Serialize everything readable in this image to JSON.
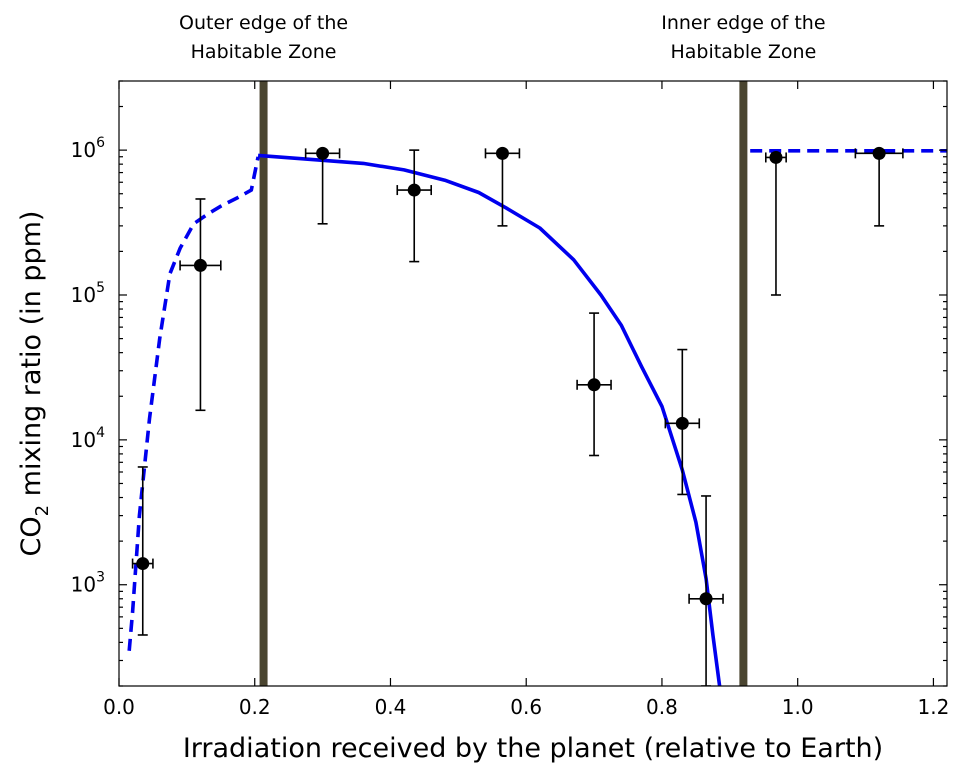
{
  "chart_data": {
    "type": "scatter",
    "title": "",
    "xlabel": "Irradiation received by the planet (relative to Earth)",
    "ylabel_main": "CO",
    "ylabel_sub": "2",
    "ylabel_rest": " mixing ratio (in ppm)",
    "xlim": [
      0.0,
      1.22
    ],
    "ylim": [
      200,
      3000000
    ],
    "yscale": "log",
    "grid": false,
    "x_ticks": [
      {
        "value": 0.0,
        "label": "0.0"
      },
      {
        "value": 0.2,
        "label": "0.2"
      },
      {
        "value": 0.4,
        "label": "0.4"
      },
      {
        "value": 0.6,
        "label": "0.6"
      },
      {
        "value": 0.8,
        "label": "0.8"
      },
      {
        "value": 1.0,
        "label": "1.0"
      },
      {
        "value": 1.2,
        "label": "1.2"
      }
    ],
    "y_ticks": [
      {
        "value": 1000,
        "base": "10",
        "exp": "3"
      },
      {
        "value": 10000,
        "base": "10",
        "exp": "4"
      },
      {
        "value": 100000,
        "base": "10",
        "exp": "5"
      },
      {
        "value": 1000000,
        "base": "10",
        "exp": "6"
      }
    ],
    "points": [
      {
        "x": 0.035,
        "y": 1400,
        "xerr": 0.015,
        "ylow": 450,
        "yhigh": 6500
      },
      {
        "x": 0.12,
        "y": 160000,
        "xerr": 0.03,
        "ylow": 16000,
        "yhigh": 460000
      },
      {
        "x": 0.3,
        "y": 950000,
        "xerr": 0.025,
        "ylow": 310000,
        "yhigh": 950000
      },
      {
        "x": 0.435,
        "y": 530000,
        "xerr": 0.025,
        "ylow": 170000,
        "yhigh": 1000000
      },
      {
        "x": 0.565,
        "y": 950000,
        "xerr": 0.025,
        "ylow": 300000,
        "yhigh": 950000
      },
      {
        "x": 0.7,
        "y": 24000,
        "xerr": 0.025,
        "ylow": 7800,
        "yhigh": 75000
      },
      {
        "x": 0.83,
        "y": 13000,
        "xerr": 0.025,
        "ylow": 4200,
        "yhigh": 42000
      },
      {
        "x": 0.865,
        "y": 800,
        "xerr": 0.025,
        "ylow": 200,
        "yhigh": 4100
      },
      {
        "x": 0.968,
        "y": 890000,
        "xerr": 0.015,
        "ylow": 100000,
        "yhigh": 950000
      },
      {
        "x": 1.12,
        "y": 950000,
        "xerr": 0.035,
        "ylow": 300000,
        "yhigh": 950000
      }
    ],
    "curves": [
      {
        "style": "dashed",
        "color": "#0000ee",
        "points": [
          [
            0.015,
            350
          ],
          [
            0.02,
            650
          ],
          [
            0.03,
            3000
          ],
          [
            0.045,
            14000
          ],
          [
            0.06,
            50000
          ],
          [
            0.075,
            140000
          ],
          [
            0.09,
            210000
          ],
          [
            0.11,
            310000
          ],
          [
            0.13,
            360000
          ],
          [
            0.15,
            410000
          ],
          [
            0.175,
            470000
          ],
          [
            0.195,
            530000
          ],
          [
            0.205,
            900000
          ]
        ]
      },
      {
        "style": "solid",
        "color": "#0000ee",
        "points": [
          [
            0.205,
            920000
          ],
          [
            0.3,
            850000
          ],
          [
            0.36,
            810000
          ],
          [
            0.42,
            730000
          ],
          [
            0.48,
            620000
          ],
          [
            0.53,
            510000
          ],
          [
            0.57,
            400000
          ],
          [
            0.62,
            290000
          ],
          [
            0.67,
            175000
          ],
          [
            0.71,
            100000
          ],
          [
            0.74,
            62000
          ],
          [
            0.77,
            32000
          ],
          [
            0.8,
            17000
          ],
          [
            0.83,
            6200
          ],
          [
            0.85,
            2700
          ],
          [
            0.865,
            1100
          ],
          [
            0.875,
            450
          ],
          [
            0.885,
            200
          ]
        ]
      },
      {
        "style": "dashed",
        "color": "#0000ee",
        "points": [
          [
            0.93,
            990000
          ],
          [
            1.22,
            990000
          ]
        ]
      }
    ],
    "vlines": [
      {
        "x": 0.213,
        "color": "#4a4530"
      },
      {
        "x": 0.92,
        "color": "#4a4530"
      }
    ],
    "annotations": [
      {
        "lines": [
          "Outer edge of the",
          "Habitable Zone"
        ],
        "x": 0.213
      },
      {
        "lines": [
          "Inner edge of the",
          "Habitable Zone"
        ],
        "x": 0.92
      }
    ]
  }
}
